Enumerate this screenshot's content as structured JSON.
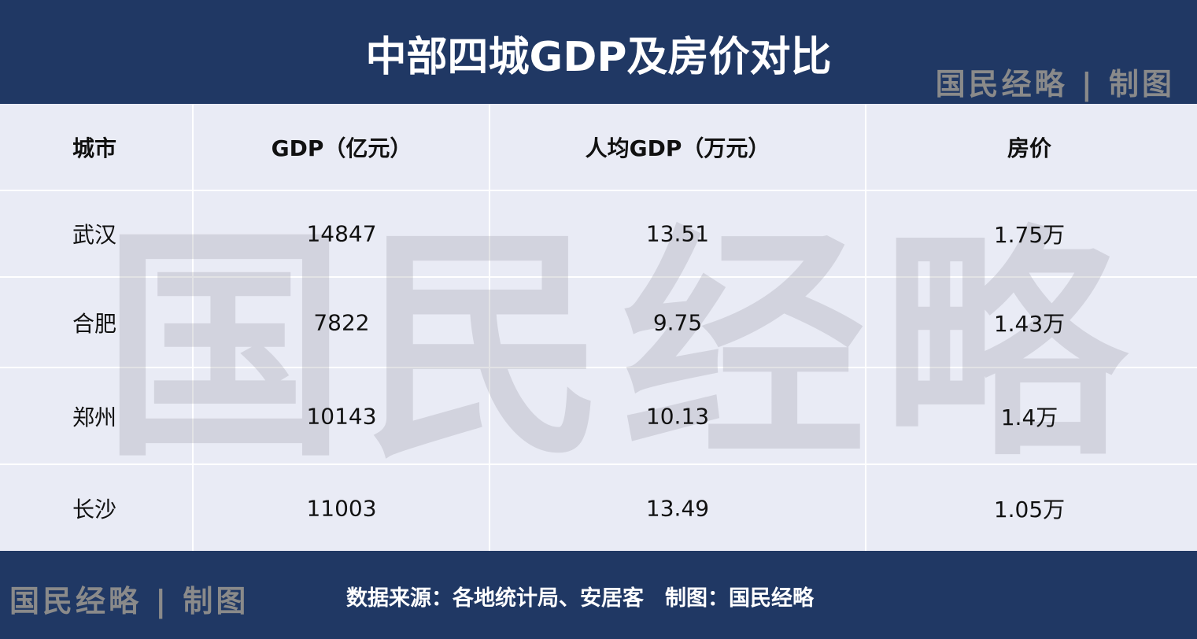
{
  "header": {
    "title": "中部四城GDP及房价对比",
    "watermark": "国民经略 | 制图"
  },
  "background_watermark": "国民经略",
  "table": {
    "columns": [
      "城市",
      "GDP（亿元）",
      "人均GDP（万元）",
      "房价"
    ],
    "rows": [
      [
        "武汉",
        "14847",
        "13.51",
        "1.75万"
      ],
      [
        "合肥",
        "7822",
        "9.75",
        "1.43万"
      ],
      [
        "郑州",
        "10143",
        "10.13",
        "1.4万"
      ],
      [
        "长沙",
        "11003",
        "13.49",
        "1.05万"
      ]
    ]
  },
  "footer": {
    "logo": "国民经略 | 制图",
    "source": "数据来源：各地统计局、安居客　制图：国民经略"
  }
}
